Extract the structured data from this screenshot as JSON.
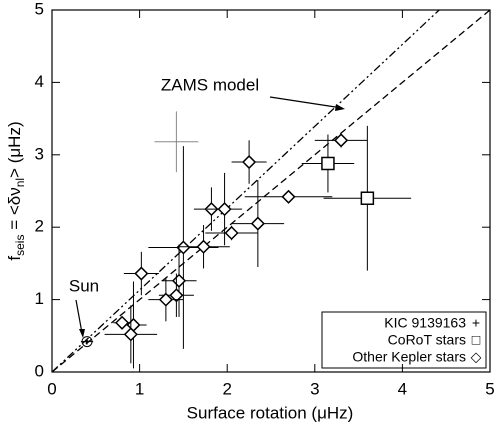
{
  "chart_data": {
    "type": "scatter",
    "x_label": "Surface rotation (μHz)",
    "y_label": {
      "main": "f",
      "sub": "seis",
      "middle": " = <δν",
      "sub2": "nl",
      "end": ">  (μHz)"
    },
    "xlim": [
      0,
      5
    ],
    "ylim": [
      0,
      5
    ],
    "xticks": [
      0,
      1,
      2,
      3,
      4,
      5
    ],
    "yticks": [
      0,
      1,
      2,
      3,
      4,
      5
    ],
    "lines": [
      {
        "style": "dashed",
        "x": [
          0,
          5
        ],
        "y": [
          0,
          5
        ]
      },
      {
        "style": "dash-dot-dot",
        "x": [
          0,
          4.42
        ],
        "y": [
          0,
          5
        ]
      }
    ],
    "annotations": [
      "ZAMS model",
      "Sun"
    ],
    "sun": {
      "x": 0.4,
      "y": 0.42,
      "xerr": 0.07,
      "yerr": 0.04
    },
    "series": [
      {
        "name": "KIC 9139163",
        "legend_symbol": "+",
        "marker": "plus",
        "color": "#888888",
        "x": [
          1.42
        ],
        "y": [
          3.18
        ],
        "xerr": [
          0.25
        ],
        "yerr": [
          0.42
        ]
      },
      {
        "name": "CoRoT stars",
        "legend_symbol": "□",
        "marker": "square",
        "color": "#000000",
        "x": [
          3.15,
          3.6
        ],
        "y": [
          2.88,
          2.4
        ],
        "xerr": [
          0.3,
          0.5
        ],
        "yerr": [
          0.4,
          1.0
        ]
      },
      {
        "name": "Other Kepler stars",
        "legend_symbol": "◇",
        "marker": "diamond",
        "color": "#000000",
        "x": [
          3.3,
          2.25,
          2.7,
          1.82,
          1.97,
          2.35,
          2.05,
          1.5,
          1.73,
          1.02,
          1.45,
          1.42,
          1.3,
          0.93,
          0.9,
          0.8
        ],
        "y": [
          3.2,
          2.9,
          2.42,
          2.25,
          2.25,
          2.05,
          1.92,
          1.72,
          1.73,
          1.36,
          1.26,
          1.06,
          1.0,
          0.65,
          0.52,
          0.68
        ],
        "xerr": [
          0.3,
          0.2,
          0.5,
          0.2,
          0.2,
          0.3,
          0.3,
          0.4,
          0.3,
          0.2,
          0.2,
          0.2,
          0.2,
          0.15,
          0.3,
          0.1
        ],
        "yerr": [
          0.1,
          0.3,
          0.05,
          0.3,
          0.5,
          0.6,
          0.1,
          1.4,
          0.3,
          0.3,
          0.5,
          0.3,
          0.3,
          0.6,
          0.4,
          0.05
        ]
      }
    ]
  }
}
